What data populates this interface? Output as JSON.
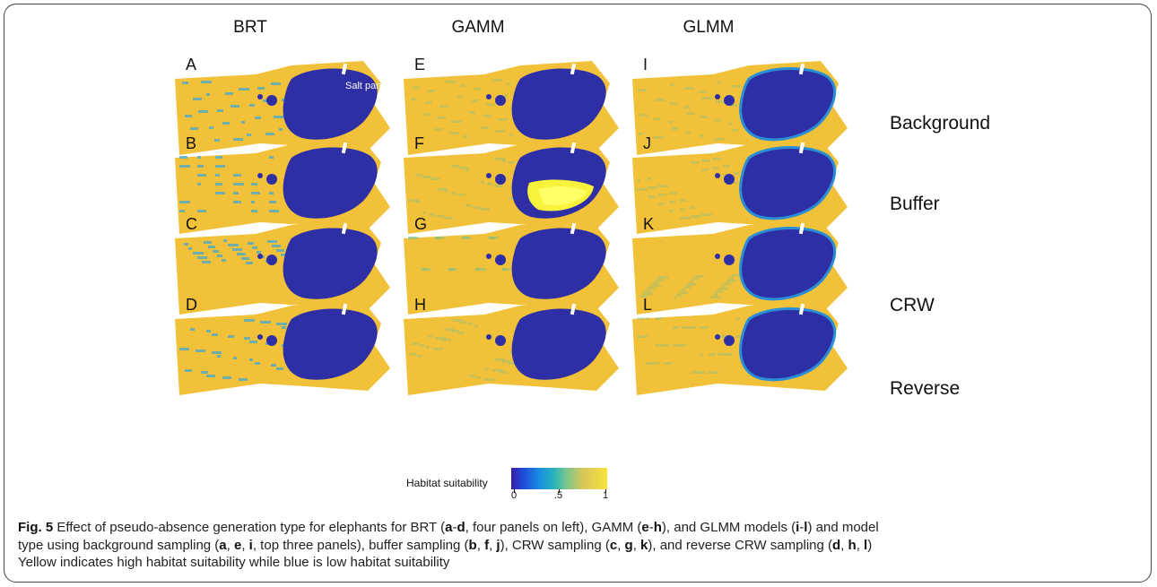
{
  "columns": [
    "BRT",
    "GAMM",
    "GLMM"
  ],
  "rows": [
    "Background",
    "Buffer",
    "CRW",
    "Reverse"
  ],
  "panel_letters": [
    "A",
    "B",
    "C",
    "D",
    "E",
    "F",
    "G",
    "H",
    "I",
    "J",
    "K",
    "L"
  ],
  "annotation": "Salt pan",
  "legend": {
    "title": "Habitat suitability",
    "ticks": [
      "0",
      ".5",
      "1"
    ],
    "low_color": "#2a1f9a",
    "high_color": "#f7e53b"
  },
  "caption": {
    "fig": "Fig. 5",
    "line1": " Effect of pseudo-absence generation type for elephants for BRT (",
    "a": "a",
    "d": "d",
    "line1b": ", four panels on left), GAMM (",
    "e": "e",
    "h": "h",
    "line1c": "), and GLMM models (",
    "i": "i",
    "l": "l",
    "line1d": ") and model",
    "line2a": "type using background sampling (",
    "line2b": ", top three panels), buffer sampling (",
    "b": "b",
    "f": "f",
    "j": "j",
    "line2c": "), CRW sampling (",
    "c": "c",
    "g": "g",
    "k": "k",
    "line2d": "), and reverse CRW sampling (",
    "line3": "Yellow indicates high habitat suitability while blue is low habitat suitability"
  },
  "colors": {
    "suitable": "#f2c13a",
    "unsuitable": "#2e2fa4",
    "mid": "#4fa9c9",
    "green": "#7fbf8a"
  }
}
